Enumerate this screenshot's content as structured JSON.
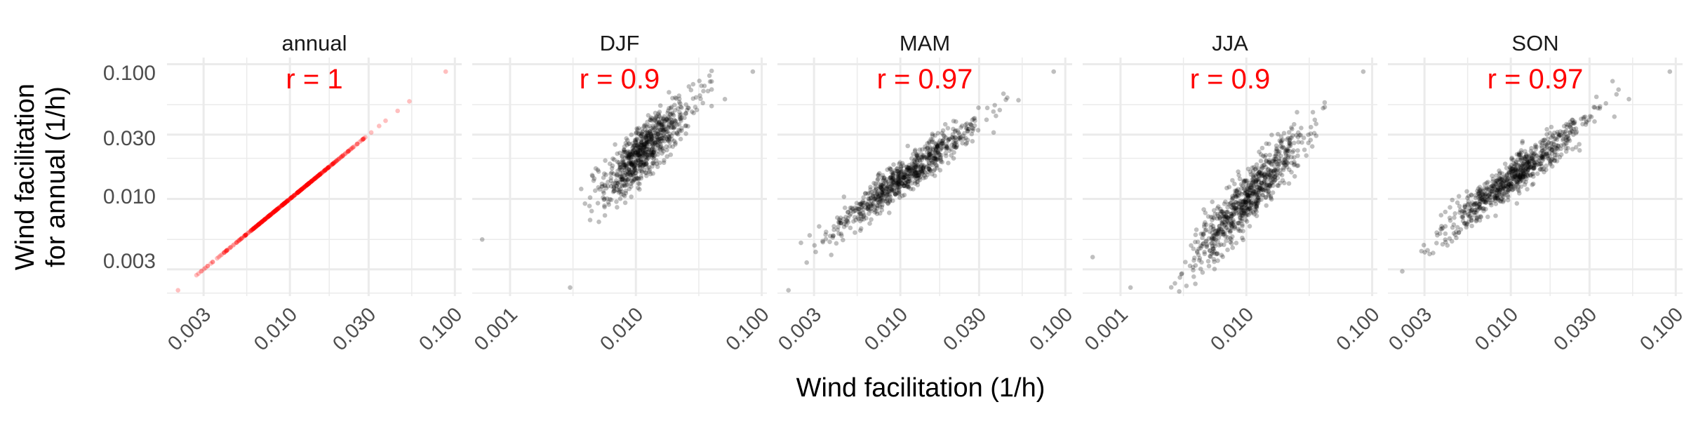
{
  "figure": {
    "xlabel": "Wind facilitation (1/h)",
    "ylabel_line1": "Wind facilitation",
    "ylabel_line2": "for annual (1/h)",
    "y_ticks": [
      "0.100",
      "0.030",
      "0.010",
      "0.003"
    ]
  },
  "colors": {
    "annotation": "#ff0000",
    "annual_points": "#ff0000",
    "season_points": "#000000",
    "grid": "#ebebeb",
    "text": "#4d4d4d"
  },
  "chart_data": [
    {
      "type": "scatter",
      "title": "annual",
      "annotation": "r = 1",
      "x_scale": "log10",
      "y_scale": "log10",
      "xlim": [
        0.0018,
        0.11
      ],
      "ylim": [
        0.0019,
        0.112
      ],
      "x_ticks": [
        "0.003",
        "0.010",
        "0.030",
        "0.100"
      ],
      "point_color": "#ff0000",
      "point_opacity": 0.25,
      "relation": {
        "slope": 1.0,
        "intercept": 0.0,
        "scatter_sd": 0.0,
        "x_range": [
          0.0022,
          0.045
        ],
        "n": 420
      },
      "extreme_points": [
        {
          "x": 0.088,
          "y": 0.088
        },
        {
          "x": 0.053,
          "y": 0.053
        },
        {
          "x": 0.0021,
          "y": 0.0021
        }
      ]
    },
    {
      "type": "scatter",
      "title": "DJF",
      "annotation": "r = 0.9",
      "x_scale": "log10",
      "y_scale": "log10",
      "xlim": [
        0.0005,
        0.11
      ],
      "ylim": [
        0.0019,
        0.112
      ],
      "x_ticks": [
        "0.001",
        "0.010",
        "0.100"
      ],
      "point_color": "#000000",
      "point_opacity": 0.25,
      "relation": {
        "slope": 0.85,
        "intercept": 0.004,
        "scatter_sd": 0.1,
        "x_range": [
          0.0035,
          0.04
        ],
        "n": 750
      },
      "extreme_points": [
        {
          "x": 0.085,
          "y": 0.088
        },
        {
          "x": 0.0006,
          "y": 0.005
        },
        {
          "x": 0.003,
          "y": 0.0022
        },
        {
          "x": 0.051,
          "y": 0.055
        }
      ]
    },
    {
      "type": "scatter",
      "title": "MAM",
      "annotation": "r = 0.97",
      "x_scale": "log10",
      "y_scale": "log10",
      "xlim": [
        0.0018,
        0.11
      ],
      "ylim": [
        0.0019,
        0.112
      ],
      "x_ticks": [
        "0.003",
        "0.010",
        "0.030",
        "0.100"
      ],
      "point_color": "#000000",
      "point_opacity": 0.25,
      "relation": {
        "slope": 0.92,
        "intercept": -0.02,
        "scatter_sd": 0.065,
        "x_range": [
          0.0025,
          0.045
        ],
        "n": 750
      },
      "extreme_points": [
        {
          "x": 0.085,
          "y": 0.088
        },
        {
          "x": 0.0021,
          "y": 0.0021
        },
        {
          "x": 0.052,
          "y": 0.054
        }
      ]
    },
    {
      "type": "scatter",
      "title": "JJA",
      "annotation": "r = 0.9",
      "x_scale": "log10",
      "y_scale": "log10",
      "xlim": [
        0.0005,
        0.11
      ],
      "ylim": [
        0.0019,
        0.112
      ],
      "x_ticks": [
        "0.001",
        "0.010",
        "0.100"
      ],
      "point_color": "#000000",
      "point_opacity": 0.25,
      "relation": {
        "slope": 1.0,
        "intercept": 0.0,
        "scatter_sd": 0.1,
        "x_range": [
          0.0025,
          0.045
        ],
        "n": 750
      },
      "extreme_points": [
        {
          "x": 0.085,
          "y": 0.088
        },
        {
          "x": 0.0006,
          "y": 0.0037
        },
        {
          "x": 0.0012,
          "y": 0.0022
        },
        {
          "x": 0.042,
          "y": 0.048
        }
      ]
    },
    {
      "type": "scatter",
      "title": "SON",
      "annotation": "r = 0.97",
      "x_scale": "log10",
      "y_scale": "log10",
      "xlim": [
        0.0018,
        0.11
      ],
      "ylim": [
        0.0019,
        0.112
      ],
      "x_ticks": [
        "0.003",
        "0.010",
        "0.030",
        "0.100"
      ],
      "point_color": "#000000",
      "point_opacity": 0.25,
      "relation": {
        "slope": 0.95,
        "intercept": 0.05,
        "scatter_sd": 0.07,
        "x_range": [
          0.0025,
          0.045
        ],
        "n": 750
      },
      "extreme_points": [
        {
          "x": 0.092,
          "y": 0.088
        },
        {
          "x": 0.0022,
          "y": 0.0029
        },
        {
          "x": 0.052,
          "y": 0.055
        }
      ]
    }
  ]
}
